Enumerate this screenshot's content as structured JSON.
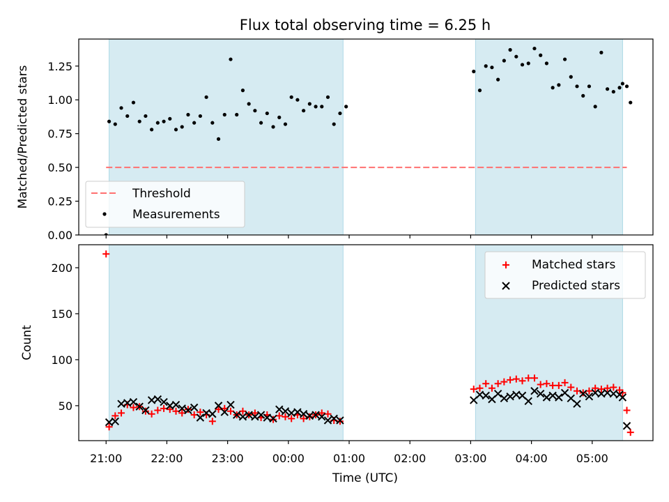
{
  "figure": {
    "title": "Flux total observing time = 6.25 h",
    "xlabel": "Time (UTC)",
    "x_tick_labels": [
      "21:00",
      "22:00",
      "23:00",
      "00:00",
      "01:00",
      "02:00",
      "03:00",
      "04:00",
      "05:00"
    ]
  },
  "colors": {
    "band": "#add8e6",
    "threshold": "#ff7070",
    "matched": "#ff0000",
    "predicted": "#000000",
    "measurement": "#000000"
  },
  "chart_data": [
    {
      "type": "scatter",
      "ylabel": "Matched/Predicted stars",
      "x_unit": "hours after 21:00 UTC",
      "xlim": [
        -0.45,
        9.0
      ],
      "ylim": [
        0.0,
        1.45
      ],
      "y_tick_labels": [
        "0.00",
        "0.25",
        "0.50",
        "0.75",
        "1.00",
        "1.25"
      ],
      "y_ticks": [
        0.0,
        0.25,
        0.5,
        0.75,
        1.0,
        1.25
      ],
      "observing_windows": [
        [
          0.05,
          3.9
        ],
        [
          6.08,
          8.5
        ]
      ],
      "threshold": {
        "name": "Threshold",
        "value": 0.5,
        "x_range": [
          0.0,
          8.57
        ]
      },
      "legend": {
        "position": "lower left",
        "entries": [
          "Threshold",
          "Measurements"
        ]
      },
      "series": [
        {
          "name": "Measurements",
          "x": [
            0.0,
            0.05,
            0.15,
            0.25,
            0.35,
            0.45,
            0.55,
            0.65,
            0.75,
            0.85,
            0.95,
            1.05,
            1.15,
            1.25,
            1.35,
            1.45,
            1.55,
            1.65,
            1.75,
            1.85,
            1.95,
            2.05,
            2.15,
            2.25,
            2.35,
            2.45,
            2.55,
            2.65,
            2.75,
            2.85,
            2.95,
            3.05,
            3.15,
            3.25,
            3.35,
            3.45,
            3.55,
            3.65,
            3.75,
            3.85,
            3.95,
            6.05,
            6.15,
            6.25,
            6.35,
            6.45,
            6.55,
            6.65,
            6.75,
            6.85,
            6.95,
            7.05,
            7.15,
            7.25,
            7.35,
            7.45,
            7.55,
            7.65,
            7.75,
            7.85,
            7.95,
            8.05,
            8.15,
            8.25,
            8.35,
            8.45,
            8.5,
            8.57,
            8.63
          ],
          "y": [
            0.0,
            0.84,
            0.82,
            0.94,
            0.88,
            0.98,
            0.84,
            0.88,
            0.78,
            0.83,
            0.84,
            0.86,
            0.78,
            0.8,
            0.89,
            0.83,
            0.88,
            1.02,
            0.83,
            0.71,
            0.89,
            1.3,
            0.89,
            1.07,
            0.97,
            0.92,
            0.83,
            0.9,
            0.8,
            0.87,
            0.82,
            1.02,
            1.0,
            0.92,
            0.97,
            0.95,
            0.95,
            1.02,
            0.82,
            0.9,
            0.95,
            1.21,
            1.07,
            1.25,
            1.24,
            1.15,
            1.29,
            1.37,
            1.32,
            1.26,
            1.27,
            1.38,
            1.33,
            1.27,
            1.09,
            1.11,
            1.3,
            1.17,
            1.1,
            1.03,
            1.1,
            0.95,
            1.35,
            1.08,
            1.06,
            1.09,
            1.12,
            1.1,
            0.98
          ]
        }
      ]
    },
    {
      "type": "scatter",
      "ylabel": "Count",
      "x_unit": "hours after 21:00 UTC",
      "xlim": [
        -0.45,
        9.0
      ],
      "ylim": [
        12,
        225
      ],
      "y_tick_labels": [
        "50",
        "100",
        "150",
        "200"
      ],
      "y_ticks": [
        50,
        100,
        150,
        200
      ],
      "observing_windows": [
        [
          0.05,
          3.9
        ],
        [
          6.08,
          8.5
        ]
      ],
      "legend": {
        "position": "upper right",
        "entries": [
          "Matched stars",
          "Predicted stars"
        ]
      },
      "series": [
        {
          "name": "Matched stars",
          "marker": "plus",
          "x": [
            0.0,
            0.05,
            0.15,
            0.25,
            0.35,
            0.45,
            0.55,
            0.65,
            0.75,
            0.85,
            0.95,
            1.05,
            1.15,
            1.25,
            1.35,
            1.45,
            1.55,
            1.65,
            1.75,
            1.85,
            1.95,
            2.05,
            2.15,
            2.25,
            2.35,
            2.45,
            2.55,
            2.65,
            2.75,
            2.85,
            2.95,
            3.05,
            3.15,
            3.25,
            3.35,
            3.45,
            3.55,
            3.65,
            3.75,
            3.85,
            6.05,
            6.15,
            6.25,
            6.35,
            6.45,
            6.55,
            6.65,
            6.75,
            6.85,
            6.95,
            7.05,
            7.15,
            7.25,
            7.35,
            7.45,
            7.55,
            7.65,
            7.75,
            7.85,
            7.95,
            8.05,
            8.15,
            8.25,
            8.35,
            8.45,
            8.5,
            8.57,
            8.63
          ],
          "y": [
            215,
            27,
            39,
            42,
            51,
            48,
            49,
            44,
            41,
            45,
            47,
            46,
            44,
            42,
            46,
            40,
            43,
            40,
            33,
            46,
            47,
            44,
            40,
            44,
            40,
            42,
            37,
            40,
            35,
            39,
            38,
            36,
            40,
            36,
            38,
            40,
            42,
            41,
            34,
            33,
            68,
            69,
            74,
            69,
            74,
            76,
            78,
            79,
            77,
            80,
            80,
            73,
            74,
            72,
            72,
            75,
            70,
            66,
            64,
            66,
            69,
            68,
            69,
            70,
            67,
            64,
            45,
            21
          ]
        },
        {
          "name": "Predicted stars",
          "marker": "x",
          "x": [
            0.05,
            0.15,
            0.25,
            0.35,
            0.45,
            0.55,
            0.65,
            0.75,
            0.85,
            0.95,
            1.05,
            1.15,
            1.25,
            1.35,
            1.45,
            1.55,
            1.65,
            1.75,
            1.85,
            1.95,
            2.05,
            2.15,
            2.25,
            2.35,
            2.45,
            2.55,
            2.65,
            2.75,
            2.85,
            2.95,
            3.05,
            3.15,
            3.25,
            3.35,
            3.45,
            3.55,
            3.65,
            3.75,
            3.85,
            6.05,
            6.15,
            6.25,
            6.35,
            6.45,
            6.55,
            6.65,
            6.75,
            6.85,
            6.95,
            7.05,
            7.15,
            7.25,
            7.35,
            7.45,
            7.55,
            7.65,
            7.75,
            7.85,
            7.95,
            8.05,
            8.15,
            8.25,
            8.35,
            8.45,
            8.5,
            8.57
          ],
          "y": [
            32,
            33,
            52,
            53,
            54,
            49,
            45,
            56,
            57,
            54,
            50,
            51,
            47,
            45,
            48,
            37,
            42,
            41,
            50,
            43,
            51,
            40,
            38,
            40,
            38,
            40,
            37,
            36,
            46,
            44,
            42,
            43,
            41,
            39,
            40,
            38,
            34,
            36,
            34,
            56,
            62,
            61,
            57,
            63,
            58,
            60,
            62,
            61,
            55,
            66,
            63,
            59,
            61,
            59,
            64,
            58,
            52,
            63,
            60,
            64,
            63,
            64,
            63,
            62,
            59,
            28
          ]
        }
      ]
    }
  ]
}
